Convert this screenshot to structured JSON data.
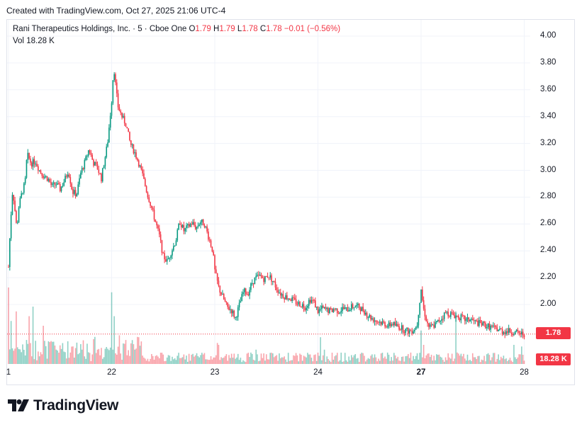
{
  "header": {
    "created_text": "Created with TradingView.com, Oct 27, 2025 21:06 UTC-4"
  },
  "legend": {
    "title": "Rani Therapeutics Holdings, Inc. · 5 · Cboe One",
    "o_label": "O",
    "o_value": "1.79",
    "h_label": "H",
    "h_value": "1.79",
    "l_label": "L",
    "l_value": "1.78",
    "c_label": "C",
    "c_value": "1.78",
    "change": "−0.01 (−0.56%)",
    "vol_label": "Vol",
    "vol_value": "18.28 K"
  },
  "price_badge": "1.78",
  "volume_badge": "18.28 K",
  "footer": {
    "logo_text": "TradingView"
  },
  "colors": {
    "up": "#089981",
    "down": "#f23645",
    "grid": "#f0f3fa",
    "text": "#131722"
  },
  "chart_data": {
    "type": "candlestick",
    "symbol": "Rani Therapeutics Holdings, Inc.",
    "interval": "5",
    "exchange": "Cboe One",
    "yticks": [
      "4.00",
      "3.80",
      "3.60",
      "3.40",
      "3.20",
      "3.00",
      "2.80",
      "2.60",
      "2.40",
      "2.20",
      "2.00"
    ],
    "ylim": [
      1.6,
      4.07
    ],
    "xticks": [
      {
        "label": "1",
        "day": 0,
        "bold": false
      },
      {
        "label": "22",
        "day": 1,
        "bold": false
      },
      {
        "label": "23",
        "day": 2,
        "bold": false
      },
      {
        "label": "24",
        "day": 3,
        "bold": false
      },
      {
        "label": "27",
        "day": 4,
        "bold": true
      },
      {
        "label": "28",
        "day": 5,
        "bold": false
      }
    ],
    "last_price": 1.78,
    "last": {
      "open": 1.79,
      "high": 1.79,
      "low": 1.78,
      "close": 1.78,
      "change": -0.01,
      "change_pct": -0.56,
      "volume_k": 18.28
    },
    "price_path": [
      [
        0.0,
        2.28
      ],
      [
        0.02,
        2.62
      ],
      [
        0.04,
        2.86
      ],
      [
        0.06,
        2.72
      ],
      [
        0.08,
        2.56
      ],
      [
        0.1,
        2.73
      ],
      [
        0.12,
        2.8
      ],
      [
        0.14,
        2.86
      ],
      [
        0.16,
        2.9
      ],
      [
        0.18,
        3.12
      ],
      [
        0.22,
        3.05
      ],
      [
        0.26,
        3.07
      ],
      [
        0.3,
        3.0
      ],
      [
        0.34,
        2.96
      ],
      [
        0.38,
        2.94
      ],
      [
        0.42,
        2.88
      ],
      [
        0.46,
        2.9
      ],
      [
        0.5,
        2.86
      ],
      [
        0.54,
        2.92
      ],
      [
        0.58,
        3.0
      ],
      [
        0.62,
        2.84
      ],
      [
        0.66,
        2.82
      ],
      [
        0.7,
        2.98
      ],
      [
        0.74,
        3.06
      ],
      [
        0.78,
        3.16
      ],
      [
        0.82,
        3.06
      ],
      [
        0.86,
        3.02
      ],
      [
        0.9,
        2.94
      ],
      [
        0.96,
        3.2
      ],
      [
        1.0,
        3.52
      ],
      [
        1.02,
        3.78
      ],
      [
        1.04,
        3.62
      ],
      [
        1.06,
        3.48
      ],
      [
        1.1,
        3.4
      ],
      [
        1.14,
        3.34
      ],
      [
        1.18,
        3.2
      ],
      [
        1.22,
        3.14
      ],
      [
        1.26,
        3.06
      ],
      [
        1.3,
        2.96
      ],
      [
        1.34,
        2.84
      ],
      [
        1.38,
        2.74
      ],
      [
        1.42,
        2.63
      ],
      [
        1.46,
        2.52
      ],
      [
        1.5,
        2.36
      ],
      [
        1.54,
        2.32
      ],
      [
        1.58,
        2.4
      ],
      [
        1.62,
        2.47
      ],
      [
        1.66,
        2.62
      ],
      [
        1.7,
        2.55
      ],
      [
        1.74,
        2.58
      ],
      [
        1.78,
        2.61
      ],
      [
        1.82,
        2.57
      ],
      [
        1.86,
        2.62
      ],
      [
        1.9,
        2.6
      ],
      [
        1.94,
        2.5
      ],
      [
        1.98,
        2.4
      ],
      [
        2.0,
        2.25
      ],
      [
        2.04,
        2.12
      ],
      [
        2.08,
        2.05
      ],
      [
        2.12,
        1.98
      ],
      [
        2.16,
        1.96
      ],
      [
        2.2,
        1.9
      ],
      [
        2.24,
        2.0
      ],
      [
        2.28,
        2.1
      ],
      [
        2.32,
        2.08
      ],
      [
        2.36,
        2.16
      ],
      [
        2.4,
        2.2
      ],
      [
        2.44,
        2.21
      ],
      [
        2.48,
        2.19
      ],
      [
        2.52,
        2.22
      ],
      [
        2.56,
        2.18
      ],
      [
        2.6,
        2.12
      ],
      [
        2.64,
        2.08
      ],
      [
        2.68,
        2.06
      ],
      [
        2.72,
        2.05
      ],
      [
        2.76,
        2.03
      ],
      [
        2.8,
        2.01
      ],
      [
        2.84,
        2.0
      ],
      [
        2.88,
        1.98
      ],
      [
        2.92,
        2.04
      ],
      [
        2.96,
        2.02
      ],
      [
        3.0,
        1.95
      ],
      [
        3.04,
        1.97
      ],
      [
        3.08,
        1.96
      ],
      [
        3.12,
        1.95
      ],
      [
        3.16,
        1.97
      ],
      [
        3.2,
        1.95
      ],
      [
        3.24,
        1.97
      ],
      [
        3.28,
        1.96
      ],
      [
        3.32,
        1.98
      ],
      [
        3.36,
        1.99
      ],
      [
        3.4,
        1.98
      ],
      [
        3.44,
        1.96
      ],
      [
        3.48,
        1.92
      ],
      [
        3.52,
        1.9
      ],
      [
        3.56,
        1.88
      ],
      [
        3.6,
        1.87
      ],
      [
        3.64,
        1.86
      ],
      [
        3.68,
        1.84
      ],
      [
        3.72,
        1.86
      ],
      [
        3.76,
        1.84
      ],
      [
        3.8,
        1.83
      ],
      [
        3.84,
        1.81
      ],
      [
        3.88,
        1.8
      ],
      [
        3.92,
        1.81
      ],
      [
        3.96,
        1.84
      ],
      [
        4.0,
        2.12
      ],
      [
        4.02,
        1.98
      ],
      [
        4.04,
        1.92
      ],
      [
        4.06,
        1.86
      ],
      [
        4.08,
        1.83
      ],
      [
        4.12,
        1.84
      ],
      [
        4.16,
        1.87
      ],
      [
        4.2,
        1.9
      ],
      [
        4.24,
        1.94
      ],
      [
        4.28,
        1.93
      ],
      [
        4.32,
        1.92
      ],
      [
        4.36,
        1.91
      ],
      [
        4.4,
        1.9
      ],
      [
        4.44,
        1.88
      ],
      [
        4.48,
        1.89
      ],
      [
        4.52,
        1.87
      ],
      [
        4.56,
        1.86
      ],
      [
        4.6,
        1.85
      ],
      [
        4.64,
        1.84
      ],
      [
        4.68,
        1.83
      ],
      [
        4.72,
        1.82
      ],
      [
        4.76,
        1.81
      ],
      [
        4.8,
        1.8
      ],
      [
        4.86,
        1.8
      ],
      [
        4.92,
        1.79
      ],
      [
        4.98,
        1.78
      ]
    ],
    "volume_spikes_k": [
      [
        0.0,
        80
      ],
      [
        0.02,
        45
      ],
      [
        0.08,
        55
      ],
      [
        0.2,
        50
      ],
      [
        0.24,
        60
      ],
      [
        0.34,
        40
      ],
      [
        1.0,
        75
      ],
      [
        1.03,
        50
      ],
      [
        1.08,
        30
      ],
      [
        1.2,
        25
      ],
      [
        2.02,
        22
      ],
      [
        2.04,
        20
      ],
      [
        2.4,
        15
      ],
      [
        3.02,
        28
      ],
      [
        3.06,
        15
      ],
      [
        4.0,
        35
      ],
      [
        4.02,
        20
      ],
      [
        4.34,
        55
      ],
      [
        4.9,
        20
      ],
      [
        4.98,
        18.28
      ]
    ]
  }
}
